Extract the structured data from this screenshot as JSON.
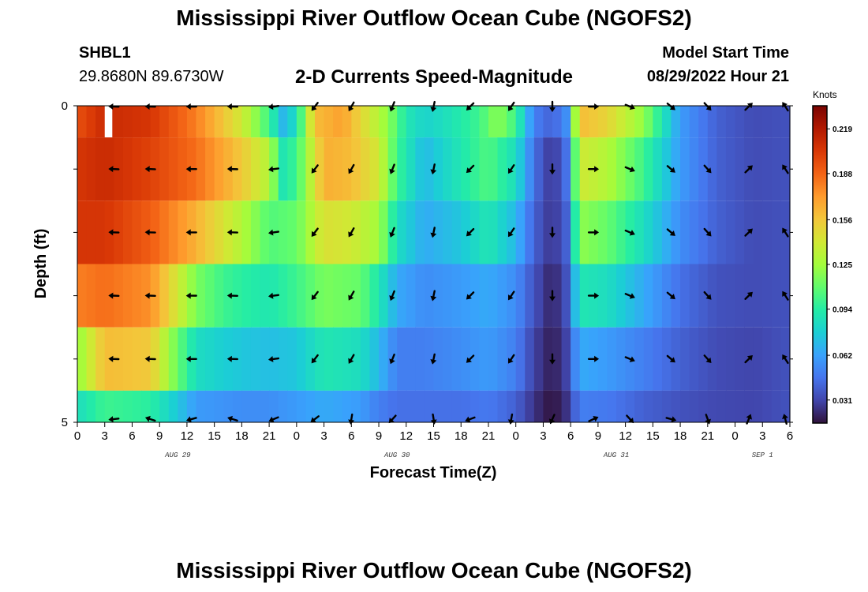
{
  "header": {
    "title": "Mississippi River Outflow Ocean Cube (NGOFS2)",
    "station_id": "SHBL1",
    "station_coords": "29.8680N  89.6730W",
    "subtitle": "2-D Currents Speed-Magnitude",
    "model_start_label": "Model Start Time",
    "model_start_value": "08/29/2022 Hour 21"
  },
  "footer": {
    "title": "Mississippi River Outflow Ocean Cube (NGOFS2)"
  },
  "colors": {
    "colormap": [
      "#30123b",
      "#4145ab",
      "#4675ed",
      "#39a2fc",
      "#1bcfd4",
      "#24eca6",
      "#61fc6c",
      "#a4fc3b",
      "#d1e834",
      "#f3c63a",
      "#fe9b2d",
      "#f36315",
      "#d93806",
      "#b11901",
      "#7a0402"
    ],
    "arrow": "#000000",
    "missing": "#ffffff"
  },
  "chart_data": {
    "type": "heatmap",
    "xlabel": "Forecast Time(Z)",
    "ylabel": "Depth (ft)",
    "x_ticks": [
      "0",
      "3",
      "6",
      "9",
      "12",
      "15",
      "18",
      "21",
      "0",
      "3",
      "6",
      "9",
      "12",
      "15",
      "18",
      "21",
      "0",
      "3",
      "6",
      "9",
      "12",
      "15",
      "18",
      "21",
      "0",
      "3",
      "6"
    ],
    "x_tick_hours": [
      0,
      3,
      6,
      9,
      12,
      15,
      18,
      21,
      24,
      27,
      30,
      33,
      36,
      39,
      42,
      45,
      48,
      51,
      54,
      57,
      60,
      63,
      66,
      69,
      72,
      75,
      78
    ],
    "xlim_hours": [
      0,
      78
    ],
    "date_labels": [
      {
        "label": "AUG 29",
        "hour": 11
      },
      {
        "label": "AUG 30",
        "hour": 35
      },
      {
        "label": "AUG 31",
        "hour": 59
      },
      {
        "label": "SEP 1",
        "hour": 75
      }
    ],
    "y_ticks": [
      "0",
      "5"
    ],
    "y_tick_values": [
      0,
      5
    ],
    "ylim": [
      0,
      5
    ],
    "colorbar": {
      "unit": "Knots",
      "ticks": [
        "0.219",
        "0.188",
        "0.156",
        "0.125",
        "0.094",
        "0.062",
        "0.031"
      ],
      "tick_values": [
        0.219,
        0.188,
        0.156,
        0.125,
        0.094,
        0.062,
        0.031
      ],
      "range": [
        0.015,
        0.235
      ]
    },
    "layers": [
      {
        "depth_top": 0,
        "depth_bottom": 0.5,
        "missing_hours": [
          3.5
        ]
      },
      {
        "depth_top": 0.5,
        "depth_bottom": 1.5
      },
      {
        "depth_top": 1.5,
        "depth_bottom": 2.5
      },
      {
        "depth_top": 2.5,
        "depth_bottom": 3.5
      },
      {
        "depth_top": 3.5,
        "depth_bottom": 4.5
      },
      {
        "depth_top": 4.5,
        "depth_bottom": 5
      }
    ],
    "speed_keyframes": [
      {
        "depth": 0,
        "points": [
          [
            0,
            0.195
          ],
          [
            3,
            0.21
          ],
          [
            8,
            0.205
          ],
          [
            13,
            0.18
          ],
          [
            18,
            0.14
          ],
          [
            21,
            0.1
          ],
          [
            22.5,
            0.07
          ],
          [
            24,
            0.085
          ],
          [
            26,
            0.16
          ],
          [
            29,
            0.17
          ],
          [
            32,
            0.14
          ],
          [
            34,
            0.12
          ],
          [
            36,
            0.09
          ],
          [
            38,
            0.08
          ],
          [
            40,
            0.085
          ],
          [
            44,
            0.1
          ],
          [
            46,
            0.12
          ],
          [
            48,
            0.1
          ],
          [
            50,
            0.05
          ],
          [
            52,
            0.04
          ],
          [
            53.5,
            0.055
          ],
          [
            55,
            0.16
          ],
          [
            58,
            0.15
          ],
          [
            62,
            0.12
          ],
          [
            66,
            0.06
          ],
          [
            70,
            0.04
          ],
          [
            74,
            0.033
          ],
          [
            78,
            0.035
          ]
        ]
      },
      {
        "depth": 1,
        "points": [
          [
            0,
            0.205
          ],
          [
            3,
            0.21
          ],
          [
            8,
            0.2
          ],
          [
            13,
            0.185
          ],
          [
            18,
            0.155
          ],
          [
            21,
            0.13
          ],
          [
            22.5,
            0.09
          ],
          [
            24,
            0.1
          ],
          [
            27,
            0.165
          ],
          [
            30,
            0.16
          ],
          [
            33,
            0.14
          ],
          [
            35,
            0.1
          ],
          [
            38,
            0.07
          ],
          [
            42,
            0.09
          ],
          [
            45,
            0.105
          ],
          [
            48,
            0.085
          ],
          [
            50,
            0.045
          ],
          [
            52,
            0.025
          ],
          [
            53.5,
            0.045
          ],
          [
            55,
            0.14
          ],
          [
            58,
            0.13
          ],
          [
            62,
            0.1
          ],
          [
            66,
            0.06
          ],
          [
            70,
            0.04
          ],
          [
            74,
            0.033
          ],
          [
            78,
            0.035
          ]
        ]
      },
      {
        "depth": 2,
        "points": [
          [
            0,
            0.205
          ],
          [
            3,
            0.205
          ],
          [
            8,
            0.19
          ],
          [
            12,
            0.17
          ],
          [
            15,
            0.15
          ],
          [
            18,
            0.13
          ],
          [
            21,
            0.105
          ],
          [
            24,
            0.11
          ],
          [
            27,
            0.145
          ],
          [
            30,
            0.14
          ],
          [
            33,
            0.125
          ],
          [
            35,
            0.085
          ],
          [
            38,
            0.065
          ],
          [
            42,
            0.075
          ],
          [
            45,
            0.09
          ],
          [
            48,
            0.07
          ],
          [
            50,
            0.04
          ],
          [
            52,
            0.025
          ],
          [
            53.5,
            0.04
          ],
          [
            55,
            0.12
          ],
          [
            58,
            0.11
          ],
          [
            62,
            0.085
          ],
          [
            66,
            0.055
          ],
          [
            70,
            0.04
          ],
          [
            74,
            0.033
          ],
          [
            78,
            0.035
          ]
        ]
      },
      {
        "depth": 3,
        "points": [
          [
            0,
            0.18
          ],
          [
            3,
            0.185
          ],
          [
            8,
            0.175
          ],
          [
            11,
            0.14
          ],
          [
            13,
            0.115
          ],
          [
            16,
            0.1
          ],
          [
            18,
            0.095
          ],
          [
            21,
            0.09
          ],
          [
            24,
            0.1
          ],
          [
            27,
            0.115
          ],
          [
            31,
            0.11
          ],
          [
            33,
            0.09
          ],
          [
            35,
            0.065
          ],
          [
            38,
            0.055
          ],
          [
            42,
            0.06
          ],
          [
            45,
            0.065
          ],
          [
            48,
            0.055
          ],
          [
            50,
            0.035
          ],
          [
            52,
            0.02
          ],
          [
            53.5,
            0.035
          ],
          [
            55,
            0.09
          ],
          [
            58,
            0.085
          ],
          [
            62,
            0.065
          ],
          [
            66,
            0.045
          ],
          [
            70,
            0.035
          ],
          [
            74,
            0.033
          ],
          [
            78,
            0.035
          ]
        ]
      },
      {
        "depth": 4,
        "points": [
          [
            0,
            0.12
          ],
          [
            3,
            0.16
          ],
          [
            8,
            0.155
          ],
          [
            11,
            0.11
          ],
          [
            13,
            0.085
          ],
          [
            16,
            0.078
          ],
          [
            18,
            0.075
          ],
          [
            21,
            0.072
          ],
          [
            24,
            0.075
          ],
          [
            27,
            0.09
          ],
          [
            31,
            0.085
          ],
          [
            33,
            0.07
          ],
          [
            35,
            0.05
          ],
          [
            38,
            0.05
          ],
          [
            42,
            0.055
          ],
          [
            45,
            0.06
          ],
          [
            48,
            0.05
          ],
          [
            50,
            0.03
          ],
          [
            52,
            0.018
          ],
          [
            53.5,
            0.03
          ],
          [
            55,
            0.065
          ],
          [
            58,
            0.06
          ],
          [
            62,
            0.05
          ],
          [
            66,
            0.04
          ],
          [
            70,
            0.033
          ],
          [
            74,
            0.031
          ],
          [
            78,
            0.035
          ]
        ]
      },
      {
        "depth": 5,
        "points": [
          [
            0,
            0.085
          ],
          [
            3,
            0.1
          ],
          [
            8,
            0.095
          ],
          [
            11,
            0.075
          ],
          [
            13,
            0.06
          ],
          [
            18,
            0.055
          ],
          [
            21,
            0.055
          ],
          [
            24,
            0.06
          ],
          [
            27,
            0.065
          ],
          [
            31,
            0.06
          ],
          [
            33,
            0.05
          ],
          [
            35,
            0.045
          ],
          [
            38,
            0.045
          ],
          [
            42,
            0.045
          ],
          [
            45,
            0.048
          ],
          [
            48,
            0.04
          ],
          [
            50,
            0.025
          ],
          [
            52,
            0.015
          ],
          [
            53.5,
            0.025
          ],
          [
            55,
            0.05
          ],
          [
            58,
            0.048
          ],
          [
            62,
            0.04
          ],
          [
            66,
            0.035
          ],
          [
            70,
            0.032
          ],
          [
            74,
            0.031
          ],
          [
            78,
            0.035
          ]
        ]
      }
    ],
    "direction_keyframes": {
      "note_units": "degrees, math convention, 0 = pointing right, 90 = pointing up",
      "points": [
        [
          0,
          175
        ],
        [
          4,
          178
        ],
        [
          8,
          178
        ],
        [
          13,
          180
        ],
        [
          18,
          178
        ],
        [
          21,
          180
        ],
        [
          24,
          225
        ],
        [
          28,
          240
        ],
        [
          32,
          240
        ],
        [
          35,
          250
        ],
        [
          38,
          270
        ],
        [
          41,
          235
        ],
        [
          45,
          215
        ],
        [
          48,
          240
        ],
        [
          50,
          260
        ],
        [
          52,
          270
        ],
        [
          55,
          0
        ],
        [
          58,
          0
        ],
        [
          60,
          340
        ],
        [
          62,
          330
        ],
        [
          65,
          320
        ],
        [
          68,
          310
        ],
        [
          70,
          315
        ],
        [
          73,
          45
        ],
        [
          75,
          40
        ],
        [
          78,
          140
        ]
      ]
    },
    "arrow_hours": [
      4,
      8,
      12.5,
      17,
      21.5,
      26,
      30,
      34.5,
      39,
      43,
      47.5,
      52,
      56.5,
      60.5,
      65,
      69,
      73.5,
      77.5
    ],
    "arrow_depths": [
      0,
      1,
      2,
      3,
      4,
      5
    ]
  }
}
